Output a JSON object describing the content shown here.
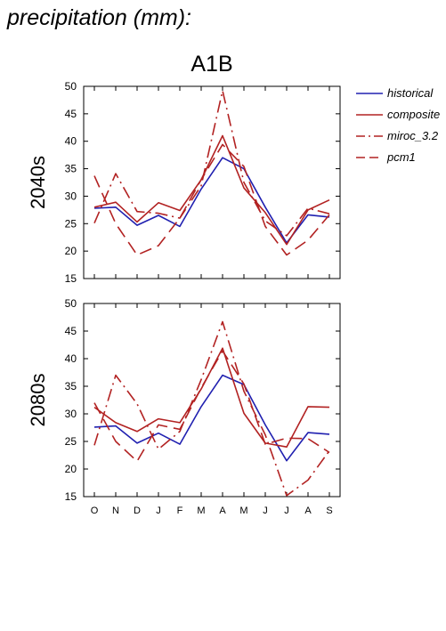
{
  "page_heading": "precipitation (mm):",
  "chart_data": [
    {
      "type": "line",
      "title": "A1B",
      "ylabel": "2040s",
      "xlabel": "",
      "categories": [
        "O",
        "N",
        "D",
        "J",
        "F",
        "M",
        "A",
        "M",
        "J",
        "J",
        "A",
        "S"
      ],
      "ylim": [
        15,
        50
      ],
      "yticks": [
        15,
        20,
        25,
        30,
        35,
        40,
        45,
        50
      ],
      "grid": false,
      "legend": "right-outside",
      "series": [
        {
          "name": "historical",
          "color": "#2020b0",
          "style": "solid",
          "values": [
            27.8,
            28.0,
            24.7,
            26.5,
            24.5,
            31.3,
            37.0,
            35.0,
            28.0,
            21.5,
            26.6,
            26.2
          ]
        },
        {
          "name": "composite",
          "color": "#b22222",
          "style": "solid",
          "values": [
            28.0,
            28.9,
            25.3,
            28.8,
            27.4,
            33.0,
            41.0,
            31.5,
            27.0,
            21.2,
            27.5,
            29.3
          ]
        },
        {
          "name": "miroc_3.2",
          "color": "#b22222",
          "style": "dashdot",
          "values": [
            25.1,
            34.1,
            27.2,
            26.9,
            26.0,
            31.9,
            49.2,
            32.5,
            25.5,
            22.8,
            27.8,
            26.8
          ]
        },
        {
          "name": "pcm1",
          "color": "#b22222",
          "style": "dash",
          "values": [
            33.7,
            25.0,
            19.3,
            21.0,
            26.0,
            33.0,
            39.4,
            35.4,
            24.5,
            19.3,
            22.0,
            26.6
          ]
        }
      ]
    },
    {
      "type": "line",
      "title": "",
      "ylabel": "2080s",
      "xlabel": "",
      "categories": [
        "O",
        "N",
        "D",
        "J",
        "F",
        "M",
        "A",
        "M",
        "J",
        "J",
        "A",
        "S"
      ],
      "ylim": [
        15,
        50
      ],
      "yticks": [
        15,
        20,
        25,
        30,
        35,
        40,
        45,
        50
      ],
      "grid": false,
      "series": [
        {
          "name": "historical",
          "color": "#2020b0",
          "style": "solid",
          "values": [
            27.6,
            27.8,
            24.7,
            26.5,
            24.5,
            31.3,
            37.0,
            35.3,
            28.0,
            21.5,
            26.6,
            26.3
          ]
        },
        {
          "name": "composite",
          "color": "#b22222",
          "style": "solid",
          "values": [
            31.2,
            28.4,
            26.8,
            29.1,
            28.4,
            34.5,
            41.9,
            30.1,
            24.7,
            24.0,
            31.3,
            31.2
          ]
        },
        {
          "name": "miroc_3.2",
          "color": "#b22222",
          "style": "dashdot",
          "values": [
            24.3,
            37.0,
            31.8,
            23.6,
            26.8,
            36.2,
            46.7,
            34.1,
            26.2,
            15.2,
            18.0,
            23.3
          ]
        },
        {
          "name": "pcm1",
          "color": "#b22222",
          "style": "dash",
          "values": [
            32.0,
            25.0,
            21.4,
            28.0,
            27.2,
            34.7,
            41.4,
            35.4,
            24.5,
            25.6,
            25.5,
            23.0
          ]
        }
      ]
    }
  ]
}
